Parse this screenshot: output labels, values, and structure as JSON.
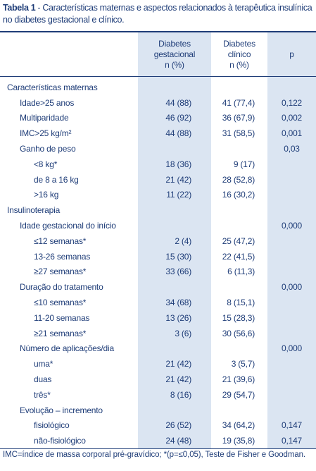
{
  "header": {
    "label": "Tabela 1",
    "title": "- Características maternas e aspectos relacionados à terapêutica insulínica no diabetes gestacional e clínico."
  },
  "table": {
    "columns": [
      [
        "Diabetes",
        "gestacional",
        "n (%)"
      ],
      [
        "Diabetes",
        "clínico",
        "n (%)"
      ],
      [
        "p"
      ]
    ],
    "rows": [
      {
        "label": "Características maternas"
      },
      {
        "label": "Idade>25 anos",
        "gestacional": "44 (88)",
        "clinico": "41 (77,4)",
        "p": "0,122"
      },
      {
        "label": "Multiparidade",
        "gestacional": "46 (92)",
        "clinico": "36 (67,9)",
        "p": "0,002"
      },
      {
        "label": "IMC>25 kg/m²",
        "gestacional": "44 (88)",
        "clinico": "31 (58,5)",
        "p": "0,001"
      },
      {
        "label": "Ganho de peso",
        "p": "0,03"
      },
      {
        "label": "<8 kg*",
        "gestacional": "18 (36)",
        "clinico": "9 (17)"
      },
      {
        "label": "de 8 a 16 kg",
        "gestacional": "21 (42)",
        "clinico": "28 (52,8)"
      },
      {
        "label": ">16 kg",
        "gestacional": "11 (22)",
        "clinico": "16 (30,2)"
      },
      {
        "label": "Insulinoterapia"
      },
      {
        "label": "Idade gestacional do início",
        "p": "0,000"
      },
      {
        "label": "≤12 semanas*",
        "gestacional": "2 (4)",
        "clinico": "25 (47,2)"
      },
      {
        "label": "13-26 semanas",
        "gestacional": "15 (30)",
        "clinico": "22 (41,5)"
      },
      {
        "label": "≥27 semanas*",
        "gestacional": "33 (66)",
        "clinico": "6 (11,3)"
      },
      {
        "label": "Duração do tratamento",
        "p": "0,000"
      },
      {
        "label": "≤10 semanas*",
        "gestacional": "34 (68)",
        "clinico": "8 (15,1)"
      },
      {
        "label": "11-20 semanas",
        "gestacional": "13 (26)",
        "clinico": "15 (28,3)"
      },
      {
        "label": "≥21 semanas*",
        "gestacional": "3 (6)",
        "clinico": "30 (56,6)"
      },
      {
        "label": "Número de aplicações/dia",
        "p": "0,000"
      },
      {
        "label": "uma*",
        "gestacional": "21 (42)",
        "clinico": "3 (5,7)"
      },
      {
        "label": "duas",
        "gestacional": "21 (42)",
        "clinico": "21 (39,6)"
      },
      {
        "label": "três*",
        "gestacional": "8 (16)",
        "clinico": "29 (54,7)"
      },
      {
        "label": "Evolução – incremento"
      },
      {
        "label": "fisiológico",
        "gestacional": "26 (52)",
        "clinico": "34 (64,2)",
        "p": "0,147"
      },
      {
        "label": "não-fisiológico",
        "gestacional": "24 (48)",
        "clinico": "19 (35,8)",
        "p": "0,147"
      }
    ]
  },
  "footnote": "IMC=índice de massa corporal pré-gravídico; *(p=≤0,05), Teste de Fisher e Goodman."
}
